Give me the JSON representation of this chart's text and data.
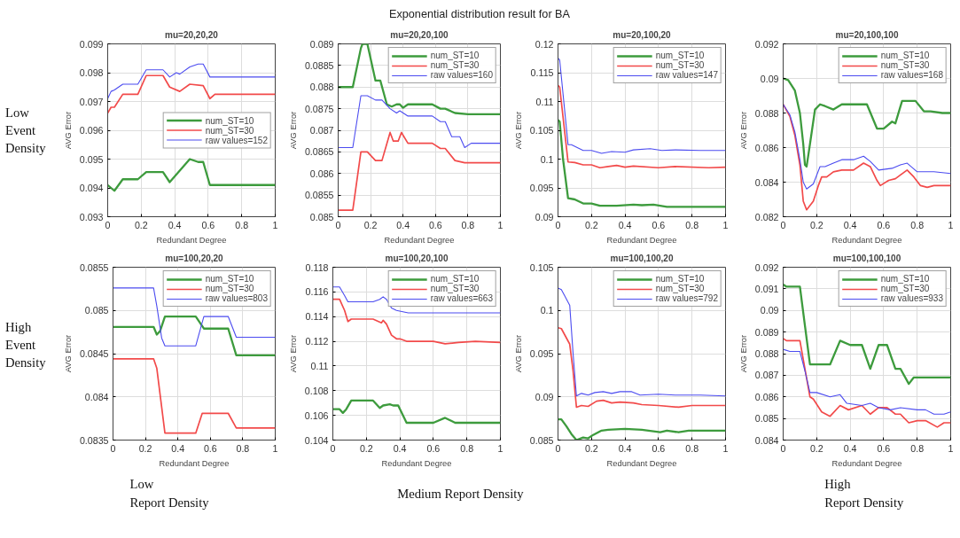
{
  "chart_data": [
    {
      "type": "other",
      "title": "Exponential distribution result for BA",
      "annotations": [
        "Low Event Density",
        "High Event Density",
        "Low Report Density",
        "Medium Report Density",
        "High Report Density"
      ]
    },
    {
      "type": "line",
      "title": "mu=20,20,20",
      "xlabel": "Redundant Degree",
      "ylabel": "AVG Error",
      "xlim": [
        0,
        1
      ],
      "xticks": [
        0,
        0.2,
        0.4,
        0.6,
        0.8,
        1
      ],
      "ylim": [
        0.093,
        0.099
      ],
      "yticks": [
        0.093,
        0.094,
        0.095,
        0.096,
        0.097,
        0.098,
        0.099
      ],
      "grid": true,
      "legend": "right",
      "series": [
        {
          "name": "num_ST=10",
          "color": "#3d9b3d",
          "x": [
            0,
            0.04,
            0.09,
            0.18,
            0.23,
            0.33,
            0.37,
            0.43,
            0.49,
            0.54,
            0.57,
            0.61,
            1
          ],
          "values": [
            0.0941,
            0.0939,
            0.0943,
            0.0943,
            0.09455,
            0.09455,
            0.0942,
            0.0946,
            0.095,
            0.0949,
            0.0949,
            0.0941,
            0.0941
          ]
        },
        {
          "name": "num_ST=30",
          "color": "#f24a4a",
          "x": [
            0,
            0.02,
            0.04,
            0.09,
            0.18,
            0.23,
            0.33,
            0.37,
            0.43,
            0.49,
            0.57,
            0.61,
            0.64,
            1
          ],
          "values": [
            0.0966,
            0.0968,
            0.0968,
            0.09725,
            0.09725,
            0.0979,
            0.0979,
            0.0975,
            0.09735,
            0.0976,
            0.09755,
            0.0971,
            0.09725,
            0.09725
          ]
        },
        {
          "name": "raw values=152",
          "color": "#4b4bf0",
          "x": [
            0,
            0.02,
            0.04,
            0.09,
            0.18,
            0.23,
            0.33,
            0.37,
            0.41,
            0.43,
            0.49,
            0.54,
            0.57,
            0.61,
            1
          ],
          "values": [
            0.0971,
            0.09735,
            0.0974,
            0.0976,
            0.0976,
            0.0981,
            0.0981,
            0.09785,
            0.098,
            0.09795,
            0.0982,
            0.0983,
            0.0983,
            0.09785,
            0.09785
          ]
        }
      ]
    },
    {
      "type": "line",
      "title": "mu=20,20,100",
      "xlabel": "Redundant Degree",
      "ylabel": "AVG Error",
      "xlim": [
        0,
        1
      ],
      "xticks": [
        0,
        0.2,
        0.4,
        0.6,
        0.8,
        1
      ],
      "ylim": [
        0.085,
        0.089
      ],
      "yticks": [
        0.085,
        0.0855,
        0.086,
        0.0865,
        0.087,
        0.0875,
        0.088,
        0.0885,
        0.089
      ],
      "grid": true,
      "legend": "top right",
      "series": [
        {
          "name": "num_ST=10",
          "color": "#3d9b3d",
          "x": [
            0,
            0.09,
            0.14,
            0.15,
            0.18,
            0.23,
            0.26,
            0.3,
            0.33,
            0.36,
            0.38,
            0.4,
            0.43,
            0.58,
            0.63,
            0.66,
            0.72,
            0.8,
            1
          ],
          "values": [
            0.088,
            0.088,
            0.0889,
            0.089,
            0.089,
            0.08815,
            0.08815,
            0.0876,
            0.08755,
            0.0876,
            0.0876,
            0.08752,
            0.0876,
            0.0876,
            0.0875,
            0.0875,
            0.0874,
            0.08737,
            0.08737
          ]
        },
        {
          "name": "num_ST=30",
          "color": "#f24a4a",
          "x": [
            0,
            0.09,
            0.14,
            0.18,
            0.23,
            0.27,
            0.32,
            0.34,
            0.37,
            0.39,
            0.43,
            0.58,
            0.63,
            0.66,
            0.72,
            0.78,
            1
          ],
          "values": [
            0.08515,
            0.08515,
            0.0865,
            0.0865,
            0.0863,
            0.0863,
            0.08695,
            0.08675,
            0.08675,
            0.08695,
            0.0867,
            0.0867,
            0.08658,
            0.08658,
            0.0863,
            0.08625,
            0.08625
          ]
        },
        {
          "name": "raw values=160",
          "color": "#4b4bf0",
          "x": [
            0,
            0.09,
            0.14,
            0.18,
            0.23,
            0.27,
            0.32,
            0.36,
            0.38,
            0.43,
            0.58,
            0.63,
            0.66,
            0.7,
            0.75,
            0.78,
            0.82,
            1
          ],
          "values": [
            0.0866,
            0.0866,
            0.0878,
            0.0878,
            0.0877,
            0.0877,
            0.0875,
            0.0874,
            0.08745,
            0.08733,
            0.08733,
            0.0872,
            0.0872,
            0.08685,
            0.08685,
            0.0866,
            0.0867,
            0.0867
          ]
        }
      ]
    },
    {
      "type": "line",
      "title": "mu=20,100,20",
      "xlabel": "Redundant Degree",
      "ylabel": "AVG Error",
      "xlim": [
        0,
        1
      ],
      "xticks": [
        0,
        0.2,
        0.4,
        0.6,
        0.8,
        1
      ],
      "ylim": [
        0.09,
        0.12
      ],
      "yticks": [
        0.09,
        0.095,
        0.1,
        0.105,
        0.11,
        0.115,
        0.12
      ],
      "grid": true,
      "legend": "top right",
      "series": [
        {
          "name": "num_ST=10",
          "color": "#3d9b3d",
          "x": [
            0,
            0.01,
            0.03,
            0.06,
            0.1,
            0.15,
            0.2,
            0.25,
            0.35,
            0.45,
            0.5,
            0.57,
            0.65,
            1
          ],
          "values": [
            0.1068,
            0.1065,
            0.1,
            0.0932,
            0.093,
            0.0923,
            0.0923,
            0.0919,
            0.0919,
            0.0921,
            0.092,
            0.0921,
            0.0917,
            0.0917
          ]
        },
        {
          "name": "num_ST=30",
          "color": "#f24a4a",
          "x": [
            0,
            0.01,
            0.06,
            0.1,
            0.15,
            0.2,
            0.25,
            0.3,
            0.35,
            0.4,
            0.45,
            0.6,
            0.7,
            0.9,
            1
          ],
          "values": [
            0.1128,
            0.1125,
            0.0995,
            0.0994,
            0.099,
            0.099,
            0.0985,
            0.0987,
            0.0989,
            0.0986,
            0.0988,
            0.0985,
            0.0987,
            0.0985,
            0.0986
          ]
        },
        {
          "name": "raw values=147",
          "color": "#4b4bf0",
          "x": [
            0,
            0.01,
            0.06,
            0.08,
            0.15,
            0.2,
            0.26,
            0.32,
            0.4,
            0.45,
            0.55,
            0.62,
            0.7,
            0.85,
            1
          ],
          "values": [
            0.1175,
            0.1172,
            0.1025,
            0.1025,
            0.1015,
            0.1015,
            0.101,
            0.1013,
            0.1012,
            0.1016,
            0.1018,
            0.1015,
            0.1016,
            0.1015,
            0.1015
          ]
        }
      ]
    },
    {
      "type": "line",
      "title": "mu=20,100,100",
      "xlabel": "Redundant Degree",
      "ylabel": "AVG Error",
      "xlim": [
        0,
        1
      ],
      "xticks": [
        0,
        0.2,
        0.4,
        0.6,
        0.8,
        1
      ],
      "ylim": [
        0.082,
        0.092
      ],
      "yticks": [
        0.082,
        0.084,
        0.086,
        0.088,
        0.09,
        0.092
      ],
      "grid": true,
      "legend": "top right",
      "series": [
        {
          "name": "num_ST=10",
          "color": "#3d9b3d",
          "x": [
            0,
            0.03,
            0.07,
            0.1,
            0.12,
            0.13,
            0.14,
            0.16,
            0.19,
            0.22,
            0.25,
            0.3,
            0.35,
            0.5,
            0.56,
            0.6,
            0.65,
            0.67,
            0.71,
            0.79,
            0.84,
            0.88,
            0.95,
            1
          ],
          "values": [
            0.09,
            0.0899,
            0.0893,
            0.088,
            0.0862,
            0.085,
            0.0849,
            0.0862,
            0.0882,
            0.0885,
            0.0884,
            0.0882,
            0.0885,
            0.0885,
            0.0871,
            0.0871,
            0.0875,
            0.0874,
            0.0887,
            0.0887,
            0.0881,
            0.0881,
            0.088,
            0.088
          ]
        },
        {
          "name": "num_ST=30",
          "color": "#f24a4a",
          "x": [
            0,
            0.04,
            0.07,
            0.1,
            0.12,
            0.14,
            0.18,
            0.21,
            0.23,
            0.26,
            0.3,
            0.35,
            0.42,
            0.48,
            0.52,
            0.56,
            0.58,
            0.63,
            0.67,
            0.74,
            0.78,
            0.82,
            0.86,
            0.9,
            1
          ],
          "values": [
            0.0885,
            0.0878,
            0.0867,
            0.085,
            0.0829,
            0.0824,
            0.0829,
            0.0838,
            0.0843,
            0.0843,
            0.0846,
            0.0847,
            0.0847,
            0.0851,
            0.0849,
            0.0841,
            0.0838,
            0.0841,
            0.0842,
            0.0847,
            0.0843,
            0.0838,
            0.0837,
            0.0838,
            0.0838
          ]
        },
        {
          "name": "raw values=168",
          "color": "#4b4bf0",
          "x": [
            0,
            0.04,
            0.07,
            0.1,
            0.12,
            0.14,
            0.18,
            0.22,
            0.25,
            0.3,
            0.35,
            0.42,
            0.48,
            0.52,
            0.57,
            0.65,
            0.7,
            0.74,
            0.8,
            0.9,
            1
          ],
          "values": [
            0.0885,
            0.0879,
            0.0869,
            0.0853,
            0.084,
            0.0836,
            0.0839,
            0.0849,
            0.0849,
            0.0851,
            0.0853,
            0.0853,
            0.0855,
            0.0852,
            0.0847,
            0.0848,
            0.085,
            0.0851,
            0.0846,
            0.0846,
            0.0845
          ]
        }
      ]
    },
    {
      "type": "line",
      "title": "mu=100,20,20",
      "xlabel": "Redundant Degree",
      "ylabel": "AVG Error",
      "xlim": [
        0,
        1
      ],
      "xticks": [
        0,
        0.2,
        0.4,
        0.6,
        0.8,
        1
      ],
      "ylim": [
        0.0835,
        0.0855
      ],
      "yticks": [
        0.0835,
        0.084,
        0.0845,
        0.085,
        0.0855
      ],
      "grid": true,
      "legend": "top right",
      "series": [
        {
          "name": "num_ST=10",
          "color": "#3d9b3d",
          "x": [
            0,
            0.25,
            0.27,
            0.29,
            0.32,
            0.51,
            0.56,
            0.71,
            0.76,
            1
          ],
          "values": [
            0.08481,
            0.08481,
            0.08472,
            0.08476,
            0.08493,
            0.08493,
            0.08479,
            0.08479,
            0.08448,
            0.08448
          ]
        },
        {
          "name": "num_ST=30",
          "color": "#f24a4a",
          "x": [
            0,
            0.25,
            0.27,
            0.32,
            0.51,
            0.55,
            0.71,
            0.76,
            1
          ],
          "values": [
            0.08444,
            0.08444,
            0.08433,
            0.08358,
            0.08358,
            0.08381,
            0.08381,
            0.08364,
            0.08364
          ]
        },
        {
          "name": "raw values=803",
          "color": "#4b4bf0",
          "x": [
            0,
            0.25,
            0.27,
            0.3,
            0.32,
            0.51,
            0.56,
            0.71,
            0.76,
            1
          ],
          "values": [
            0.08526,
            0.08526,
            0.08505,
            0.08468,
            0.08459,
            0.08459,
            0.08493,
            0.08493,
            0.08469,
            0.08469
          ]
        }
      ]
    },
    {
      "type": "line",
      "title": "mu=100,20,100",
      "xlabel": "Redundant Degree",
      "ylabel": "AVG Error",
      "xlim": [
        0,
        1
      ],
      "xticks": [
        0,
        0.2,
        0.4,
        0.6,
        0.8,
        1
      ],
      "ylim": [
        0.104,
        0.118
      ],
      "yticks": [
        0.104,
        0.106,
        0.108,
        0.11,
        0.112,
        0.114,
        0.116,
        0.118
      ],
      "grid": true,
      "legend": "top right",
      "series": [
        {
          "name": "num_ST=10",
          "color": "#3d9b3d",
          "x": [
            0,
            0.04,
            0.06,
            0.08,
            0.11,
            0.24,
            0.28,
            0.3,
            0.34,
            0.36,
            0.39,
            0.44,
            0.6,
            0.67,
            0.73,
            1
          ],
          "values": [
            0.1065,
            0.1065,
            0.1062,
            0.1065,
            0.1072,
            0.1072,
            0.1066,
            0.1068,
            0.1069,
            0.1068,
            0.1068,
            0.1054,
            0.1054,
            0.1058,
            0.1054,
            0.1054
          ]
        },
        {
          "name": "num_ST=30",
          "color": "#f24a4a",
          "x": [
            0,
            0.04,
            0.07,
            0.09,
            0.11,
            0.24,
            0.29,
            0.3,
            0.32,
            0.35,
            0.38,
            0.4,
            0.44,
            0.6,
            0.67,
            0.75,
            0.85,
            1
          ],
          "values": [
            0.1154,
            0.1154,
            0.1145,
            0.1136,
            0.1138,
            0.1138,
            0.1135,
            0.1137,
            0.1134,
            0.1125,
            0.1122,
            0.1122,
            0.112,
            0.112,
            0.1118,
            0.1119,
            0.112,
            0.1119
          ]
        },
        {
          "name": "raw values=663",
          "color": "#4b4bf0",
          "x": [
            0,
            0.04,
            0.07,
            0.09,
            0.24,
            0.28,
            0.3,
            0.32,
            0.35,
            0.38,
            0.45,
            1
          ],
          "values": [
            0.1164,
            0.1164,
            0.1157,
            0.1152,
            0.1152,
            0.1154,
            0.1156,
            0.1154,
            0.1147,
            0.1145,
            0.1143,
            0.1143
          ]
        }
      ]
    },
    {
      "type": "line",
      "title": "mu=100,100,20",
      "xlabel": "Redundant Degree",
      "ylabel": "AVG Error",
      "xlim": [
        0,
        1
      ],
      "xticks": [
        0,
        0.2,
        0.4,
        0.6,
        0.8,
        1
      ],
      "ylim": [
        0.085,
        0.105
      ],
      "yticks": [
        0.085,
        0.09,
        0.095,
        0.1,
        0.105
      ],
      "grid": true,
      "legend": "top right",
      "series": [
        {
          "name": "num_ST=10",
          "color": "#3d9b3d",
          "x": [
            0,
            0.02,
            0.05,
            0.08,
            0.11,
            0.15,
            0.18,
            0.21,
            0.26,
            0.3,
            0.4,
            0.5,
            0.61,
            0.65,
            0.72,
            0.78,
            1
          ],
          "values": [
            0.0874,
            0.0874,
            0.0866,
            0.0857,
            0.085,
            0.0853,
            0.0852,
            0.0856,
            0.0861,
            0.0862,
            0.0863,
            0.0862,
            0.0859,
            0.0861,
            0.0859,
            0.0861,
            0.0861
          ]
        },
        {
          "name": "num_ST=30",
          "color": "#f24a4a",
          "x": [
            0,
            0.02,
            0.07,
            0.09,
            0.11,
            0.14,
            0.18,
            0.23,
            0.27,
            0.32,
            0.37,
            0.45,
            0.5,
            0.6,
            0.72,
            0.8,
            1
          ],
          "values": [
            0.098,
            0.0979,
            0.0961,
            0.093,
            0.0888,
            0.089,
            0.0889,
            0.0895,
            0.0896,
            0.0893,
            0.0894,
            0.0893,
            0.0891,
            0.089,
            0.0888,
            0.089,
            0.089
          ]
        },
        {
          "name": "raw values=792",
          "color": "#4b4bf0",
          "x": [
            0,
            0.02,
            0.04,
            0.07,
            0.09,
            0.11,
            0.14,
            0.18,
            0.22,
            0.27,
            0.32,
            0.37,
            0.44,
            0.49,
            0.6,
            0.7,
            0.85,
            1
          ],
          "values": [
            0.1026,
            0.1024,
            0.1017,
            0.1006,
            0.095,
            0.0901,
            0.0904,
            0.0902,
            0.0905,
            0.0906,
            0.0904,
            0.0906,
            0.0906,
            0.0902,
            0.0903,
            0.0902,
            0.0902,
            0.0901
          ]
        }
      ]
    },
    {
      "type": "line",
      "title": "mu=100,100,100",
      "xlabel": "Redundant Degree",
      "ylabel": "AVG Error",
      "xlim": [
        0,
        1
      ],
      "xticks": [
        0,
        0.2,
        0.4,
        0.6,
        0.8,
        1
      ],
      "ylim": [
        0.084,
        0.092
      ],
      "yticks": [
        0.084,
        0.085,
        0.086,
        0.087,
        0.088,
        0.089,
        0.09,
        0.091,
        0.092
      ],
      "grid": true,
      "legend": "top right",
      "series": [
        {
          "name": "num_ST=10",
          "color": "#3d9b3d",
          "x": [
            0,
            0.02,
            0.1,
            0.13,
            0.16,
            0.28,
            0.34,
            0.4,
            0.47,
            0.52,
            0.57,
            0.62,
            0.67,
            0.7,
            0.75,
            0.78,
            1
          ],
          "values": [
            0.0912,
            0.0911,
            0.0911,
            0.0893,
            0.0875,
            0.0875,
            0.0886,
            0.0884,
            0.0884,
            0.0873,
            0.0884,
            0.0884,
            0.0873,
            0.0873,
            0.0866,
            0.0869,
            0.0869
          ]
        },
        {
          "name": "num_ST=30",
          "color": "#f24a4a",
          "x": [
            0,
            0.02,
            0.1,
            0.13,
            0.16,
            0.18,
            0.23,
            0.28,
            0.34,
            0.39,
            0.47,
            0.52,
            0.57,
            0.62,
            0.67,
            0.7,
            0.75,
            0.8,
            0.85,
            0.92,
            0.96,
            1
          ],
          "values": [
            0.0887,
            0.0886,
            0.0886,
            0.0873,
            0.086,
            0.0859,
            0.0853,
            0.0851,
            0.0856,
            0.0854,
            0.0856,
            0.0852,
            0.0855,
            0.0855,
            0.0852,
            0.0852,
            0.0848,
            0.0849,
            0.0849,
            0.0846,
            0.0848,
            0.0848
          ]
        },
        {
          "name": "raw values=933",
          "color": "#4b4bf0",
          "x": [
            0,
            0.04,
            0.1,
            0.13,
            0.16,
            0.2,
            0.28,
            0.34,
            0.38,
            0.47,
            0.52,
            0.57,
            0.64,
            0.7,
            0.8,
            0.85,
            0.9,
            0.96,
            1
          ],
          "values": [
            0.0882,
            0.0881,
            0.0881,
            0.0872,
            0.0862,
            0.0862,
            0.086,
            0.0861,
            0.0857,
            0.0856,
            0.0857,
            0.0855,
            0.0854,
            0.0855,
            0.0854,
            0.0854,
            0.0852,
            0.0852,
            0.0853
          ]
        }
      ]
    }
  ]
}
